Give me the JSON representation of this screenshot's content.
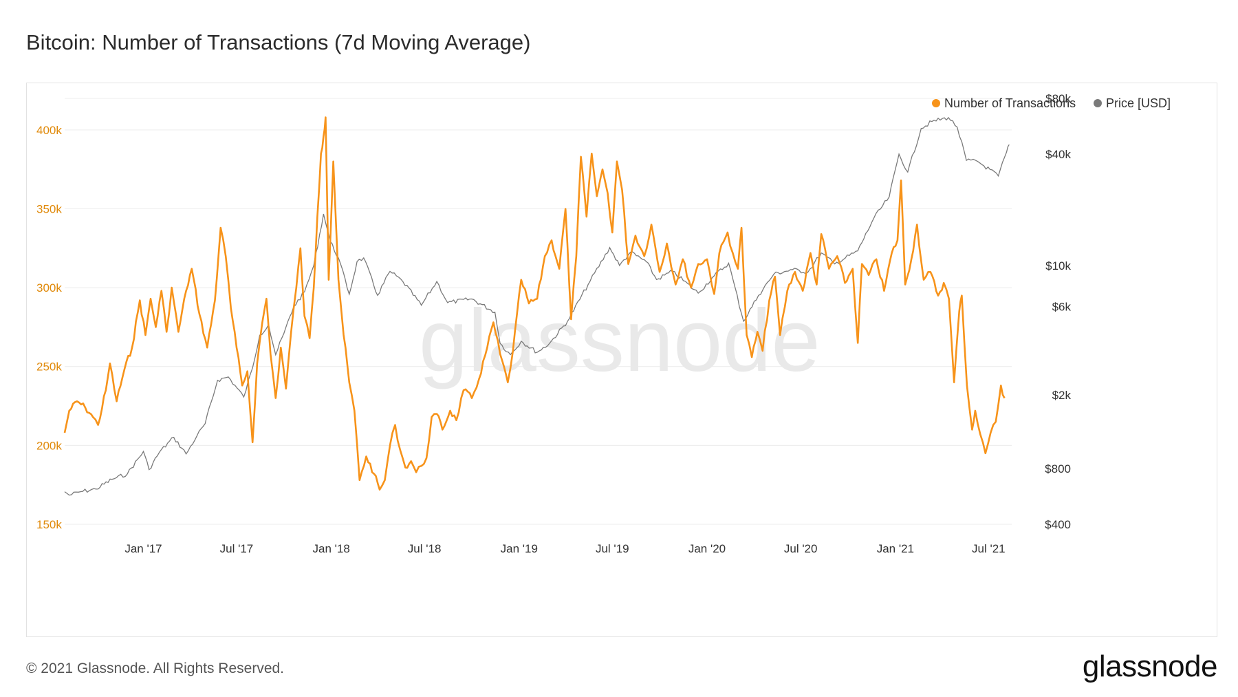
{
  "header": {
    "title": "Bitcoin: Number of Transactions (7d Moving Average)"
  },
  "footer": {
    "copyright": "© 2021 Glassnode. All Rights Reserved.",
    "brand": "glassnode"
  },
  "watermark": "glassnode",
  "colors": {
    "transactions": "#f7931a",
    "price": "#7a7a7a",
    "left_axis_text": "#e08a0b",
    "grid": "#ececec"
  },
  "chart_data": {
    "type": "line",
    "title": "Bitcoin: Number of Transactions (7d Moving Average)",
    "grid": true,
    "legend": {
      "placement": "top-right",
      "entries": [
        "Number of Transactions",
        "Price [USD]"
      ]
    },
    "x_range": [
      "2016-08-01",
      "2021-08-15"
    ],
    "x_ticks": [
      {
        "date": "2017-01-01",
        "label": "Jan '17"
      },
      {
        "date": "2017-07-01",
        "label": "Jul '17"
      },
      {
        "date": "2018-01-01",
        "label": "Jan '18"
      },
      {
        "date": "2018-07-01",
        "label": "Jul '18"
      },
      {
        "date": "2019-01-01",
        "label": "Jan '19"
      },
      {
        "date": "2019-07-01",
        "label": "Jul '19"
      },
      {
        "date": "2020-01-01",
        "label": "Jan '20"
      },
      {
        "date": "2020-07-01",
        "label": "Jul '20"
      },
      {
        "date": "2021-01-01",
        "label": "Jan '21"
      },
      {
        "date": "2021-07-01",
        "label": "Jul '21"
      }
    ],
    "y_left": {
      "range": [
        150000,
        420000
      ],
      "ticks": [
        {
          "value": 150000,
          "label": "150k"
        },
        {
          "value": 200000,
          "label": "200k"
        },
        {
          "value": 250000,
          "label": "250k"
        },
        {
          "value": 300000,
          "label": "300k"
        },
        {
          "value": 350000,
          "label": "350k"
        },
        {
          "value": 400000,
          "label": "400k"
        }
      ]
    },
    "y_right": {
      "scale": "log",
      "range": [
        400,
        80000
      ],
      "ticks": [
        {
          "value": 400,
          "label": "$400"
        },
        {
          "value": 800,
          "label": "$800"
        },
        {
          "value": 2000,
          "label": "$2k"
        },
        {
          "value": 6000,
          "label": "$6k"
        },
        {
          "value": 10000,
          "label": "$10k"
        },
        {
          "value": 40000,
          "label": "$40k"
        },
        {
          "value": 80000,
          "label": "$80k"
        }
      ]
    },
    "series": [
      {
        "name": "Number of Transactions",
        "axis": "left",
        "points": [
          [
            "2016-08-01",
            208000
          ],
          [
            "2016-08-10",
            222000
          ],
          [
            "2016-08-25",
            228000
          ],
          [
            "2016-09-10",
            224000
          ],
          [
            "2016-09-25",
            218000
          ],
          [
            "2016-10-05",
            213000
          ],
          [
            "2016-10-20",
            235000
          ],
          [
            "2016-10-28",
            252000
          ],
          [
            "2016-11-10",
            228000
          ],
          [
            "2016-11-25",
            248000
          ],
          [
            "2016-12-10",
            262000
          ],
          [
            "2016-12-25",
            292000
          ],
          [
            "2017-01-05",
            270000
          ],
          [
            "2017-01-15",
            293000
          ],
          [
            "2017-01-25",
            275000
          ],
          [
            "2017-02-05",
            298000
          ],
          [
            "2017-02-15",
            272000
          ],
          [
            "2017-02-25",
            300000
          ],
          [
            "2017-03-10",
            272000
          ],
          [
            "2017-03-25",
            298000
          ],
          [
            "2017-04-05",
            312000
          ],
          [
            "2017-04-20",
            283000
          ],
          [
            "2017-05-05",
            262000
          ],
          [
            "2017-05-20",
            292000
          ],
          [
            "2017-05-31",
            338000
          ],
          [
            "2017-06-10",
            320000
          ],
          [
            "2017-06-20",
            287000
          ],
          [
            "2017-07-01",
            262000
          ],
          [
            "2017-07-12",
            238000
          ],
          [
            "2017-07-22",
            247000
          ],
          [
            "2017-08-01",
            202000
          ],
          [
            "2017-08-10",
            252000
          ],
          [
            "2017-08-20",
            278000
          ],
          [
            "2017-08-28",
            293000
          ],
          [
            "2017-09-05",
            258000
          ],
          [
            "2017-09-15",
            230000
          ],
          [
            "2017-09-25",
            262000
          ],
          [
            "2017-10-05",
            236000
          ],
          [
            "2017-10-15",
            272000
          ],
          [
            "2017-10-25",
            300000
          ],
          [
            "2017-11-02",
            325000
          ],
          [
            "2017-11-10",
            282000
          ],
          [
            "2017-11-20",
            268000
          ],
          [
            "2017-11-28",
            300000
          ],
          [
            "2017-12-05",
            345000
          ],
          [
            "2017-12-12",
            385000
          ],
          [
            "2017-12-17",
            396000
          ],
          [
            "2017-12-21",
            408000
          ],
          [
            "2017-12-27",
            305000
          ],
          [
            "2018-01-05",
            380000
          ],
          [
            "2018-01-15",
            305000
          ],
          [
            "2018-01-25",
            270000
          ],
          [
            "2018-02-05",
            240000
          ],
          [
            "2018-02-15",
            222000
          ],
          [
            "2018-02-25",
            178000
          ],
          [
            "2018-03-10",
            193000
          ],
          [
            "2018-03-25",
            182000
          ],
          [
            "2018-04-05",
            172000
          ],
          [
            "2018-04-15",
            178000
          ],
          [
            "2018-04-25",
            200000
          ],
          [
            "2018-05-05",
            213000
          ],
          [
            "2018-05-15",
            197000
          ],
          [
            "2018-05-25",
            186000
          ],
          [
            "2018-06-05",
            190000
          ],
          [
            "2018-06-15",
            183000
          ],
          [
            "2018-06-25",
            187000
          ],
          [
            "2018-07-05",
            192000
          ],
          [
            "2018-07-15",
            218000
          ],
          [
            "2018-07-25",
            220000
          ],
          [
            "2018-08-05",
            210000
          ],
          [
            "2018-08-20",
            222000
          ],
          [
            "2018-09-01",
            216000
          ],
          [
            "2018-09-15",
            235000
          ],
          [
            "2018-10-01",
            230000
          ],
          [
            "2018-10-15",
            242000
          ],
          [
            "2018-10-31",
            262000
          ],
          [
            "2018-11-12",
            278000
          ],
          [
            "2018-11-25",
            258000
          ],
          [
            "2018-12-10",
            240000
          ],
          [
            "2018-12-20",
            260000
          ],
          [
            "2019-01-05",
            305000
          ],
          [
            "2019-01-20",
            290000
          ],
          [
            "2019-02-05",
            293000
          ],
          [
            "2019-02-20",
            320000
          ],
          [
            "2019-03-05",
            330000
          ],
          [
            "2019-03-20",
            312000
          ],
          [
            "2019-04-01",
            350000
          ],
          [
            "2019-04-12",
            280000
          ],
          [
            "2019-04-22",
            320000
          ],
          [
            "2019-05-01",
            383000
          ],
          [
            "2019-05-12",
            345000
          ],
          [
            "2019-05-22",
            385000
          ],
          [
            "2019-06-01",
            358000
          ],
          [
            "2019-06-12",
            375000
          ],
          [
            "2019-06-22",
            360000
          ],
          [
            "2019-07-01",
            335000
          ],
          [
            "2019-07-10",
            380000
          ],
          [
            "2019-07-20",
            362000
          ],
          [
            "2019-08-01",
            315000
          ],
          [
            "2019-08-15",
            333000
          ],
          [
            "2019-09-01",
            320000
          ],
          [
            "2019-09-15",
            340000
          ],
          [
            "2019-10-01",
            310000
          ],
          [
            "2019-10-15",
            328000
          ],
          [
            "2019-11-01",
            302000
          ],
          [
            "2019-11-15",
            318000
          ],
          [
            "2019-12-01",
            300000
          ],
          [
            "2019-12-15",
            315000
          ],
          [
            "2020-01-01",
            318000
          ],
          [
            "2020-01-15",
            296000
          ],
          [
            "2020-01-25",
            322000
          ],
          [
            "2020-02-10",
            335000
          ],
          [
            "2020-02-20",
            322000
          ],
          [
            "2020-03-01",
            312000
          ],
          [
            "2020-03-08",
            338000
          ],
          [
            "2020-03-18",
            270000
          ],
          [
            "2020-03-28",
            256000
          ],
          [
            "2020-04-08",
            272000
          ],
          [
            "2020-04-18",
            260000
          ],
          [
            "2020-05-01",
            292000
          ],
          [
            "2020-05-12",
            307000
          ],
          [
            "2020-05-22",
            270000
          ],
          [
            "2020-06-05",
            298000
          ],
          [
            "2020-06-20",
            310000
          ],
          [
            "2020-07-05",
            298000
          ],
          [
            "2020-07-20",
            322000
          ],
          [
            "2020-08-01",
            302000
          ],
          [
            "2020-08-10",
            334000
          ],
          [
            "2020-08-25",
            312000
          ],
          [
            "2020-09-10",
            320000
          ],
          [
            "2020-09-25",
            303000
          ],
          [
            "2020-10-10",
            312000
          ],
          [
            "2020-10-20",
            265000
          ],
          [
            "2020-10-28",
            315000
          ],
          [
            "2020-11-10",
            308000
          ],
          [
            "2020-11-25",
            318000
          ],
          [
            "2020-12-10",
            298000
          ],
          [
            "2020-12-25",
            322000
          ],
          [
            "2021-01-05",
            330000
          ],
          [
            "2021-01-12",
            368000
          ],
          [
            "2021-01-20",
            302000
          ],
          [
            "2021-02-01",
            318000
          ],
          [
            "2021-02-12",
            340000
          ],
          [
            "2021-02-25",
            305000
          ],
          [
            "2021-03-10",
            310000
          ],
          [
            "2021-03-25",
            295000
          ],
          [
            "2021-04-05",
            303000
          ],
          [
            "2021-04-15",
            293000
          ],
          [
            "2021-04-25",
            240000
          ],
          [
            "2021-05-05",
            285000
          ],
          [
            "2021-05-10",
            295000
          ],
          [
            "2021-05-20",
            238000
          ],
          [
            "2021-05-30",
            210000
          ],
          [
            "2021-06-05",
            222000
          ],
          [
            "2021-06-15",
            207000
          ],
          [
            "2021-06-25",
            195000
          ],
          [
            "2021-07-05",
            208000
          ],
          [
            "2021-07-15",
            215000
          ],
          [
            "2021-07-25",
            238000
          ],
          [
            "2021-08-01",
            230000
          ]
        ]
      },
      {
        "name": "Price [USD]",
        "axis": "right",
        "points": [
          [
            "2016-08-01",
            600
          ],
          [
            "2016-08-10",
            575
          ],
          [
            "2016-09-01",
            600
          ],
          [
            "2016-10-01",
            620
          ],
          [
            "2016-11-01",
            700
          ],
          [
            "2016-12-01",
            750
          ],
          [
            "2017-01-01",
            990
          ],
          [
            "2017-01-12",
            790
          ],
          [
            "2017-02-01",
            980
          ],
          [
            "2017-03-01",
            1180
          ],
          [
            "2017-03-25",
            960
          ],
          [
            "2017-04-15",
            1200
          ],
          [
            "2017-05-01",
            1400
          ],
          [
            "2017-05-25",
            2400
          ],
          [
            "2017-06-15",
            2500
          ],
          [
            "2017-07-15",
            1950
          ],
          [
            "2017-08-01",
            2800
          ],
          [
            "2017-08-15",
            4200
          ],
          [
            "2017-09-01",
            4800
          ],
          [
            "2017-09-15",
            3300
          ],
          [
            "2017-10-01",
            4300
          ],
          [
            "2017-10-20",
            6000
          ],
          [
            "2017-11-10",
            7200
          ],
          [
            "2017-11-28",
            10000
          ],
          [
            "2017-12-17",
            19000
          ],
          [
            "2017-12-30",
            13500
          ],
          [
            "2018-01-15",
            11000
          ],
          [
            "2018-02-05",
            7000
          ],
          [
            "2018-02-20",
            10500
          ],
          [
            "2018-03-05",
            11000
          ],
          [
            "2018-04-01",
            6900
          ],
          [
            "2018-04-25",
            9300
          ],
          [
            "2018-05-20",
            8200
          ],
          [
            "2018-06-25",
            6100
          ],
          [
            "2018-07-25",
            8200
          ],
          [
            "2018-08-15",
            6300
          ],
          [
            "2018-10-01",
            6600
          ],
          [
            "2018-11-15",
            5600
          ],
          [
            "2018-11-25",
            3800
          ],
          [
            "2018-12-15",
            3300
          ],
          [
            "2019-01-05",
            3900
          ],
          [
            "2019-02-05",
            3400
          ],
          [
            "2019-03-01",
            3800
          ],
          [
            "2019-04-05",
            5000
          ],
          [
            "2019-05-15",
            7900
          ],
          [
            "2019-06-26",
            12500
          ],
          [
            "2019-07-15",
            10000
          ],
          [
            "2019-08-05",
            11800
          ],
          [
            "2019-09-05",
            10500
          ],
          [
            "2019-09-25",
            8400
          ],
          [
            "2019-10-26",
            9300
          ],
          [
            "2019-12-15",
            7100
          ],
          [
            "2020-01-15",
            8800
          ],
          [
            "2020-02-12",
            10300
          ],
          [
            "2020-03-12",
            5000
          ],
          [
            "2020-04-10",
            6900
          ],
          [
            "2020-05-10",
            9000
          ],
          [
            "2020-06-15",
            9500
          ],
          [
            "2020-07-15",
            9200
          ],
          [
            "2020-08-10",
            11700
          ],
          [
            "2020-09-05",
            10200
          ],
          [
            "2020-10-20",
            12000
          ],
          [
            "2020-11-20",
            18000
          ],
          [
            "2020-12-20",
            23500
          ],
          [
            "2021-01-08",
            40000
          ],
          [
            "2021-01-25",
            32000
          ],
          [
            "2021-02-20",
            55000
          ],
          [
            "2021-03-13",
            60000
          ],
          [
            "2021-04-14",
            63000
          ],
          [
            "2021-05-01",
            56000
          ],
          [
            "2021-05-19",
            37000
          ],
          [
            "2021-06-10",
            36500
          ],
          [
            "2021-07-20",
            30500
          ],
          [
            "2021-08-05",
            41000
          ],
          [
            "2021-08-10",
            45000
          ]
        ]
      }
    ]
  }
}
